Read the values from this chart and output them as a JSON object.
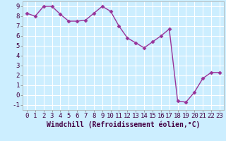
{
  "x": [
    0,
    1,
    2,
    3,
    4,
    5,
    6,
    7,
    8,
    9,
    10,
    11,
    12,
    13,
    14,
    15,
    16,
    17,
    18,
    19,
    20,
    21,
    22,
    23
  ],
  "y": [
    8.3,
    8.0,
    9.0,
    9.0,
    8.2,
    7.5,
    7.5,
    7.6,
    8.3,
    9.0,
    8.5,
    7.0,
    5.8,
    5.3,
    4.8,
    5.4,
    6.0,
    6.7,
    -0.6,
    -0.7,
    0.3,
    1.7,
    2.3,
    2.3
  ],
  "line_color": "#993399",
  "marker": "D",
  "markersize": 2.5,
  "linewidth": 1.0,
  "xlabel": "Windchill (Refroidissement éolien,°C)",
  "xlabel_fontsize": 7,
  "xlim": [
    -0.5,
    23.5
  ],
  "ylim": [
    -1.5,
    9.5
  ],
  "yticks": [
    -1,
    0,
    1,
    2,
    3,
    4,
    5,
    6,
    7,
    8,
    9
  ],
  "xticks": [
    0,
    1,
    2,
    3,
    4,
    5,
    6,
    7,
    8,
    9,
    10,
    11,
    12,
    13,
    14,
    15,
    16,
    17,
    18,
    19,
    20,
    21,
    22,
    23
  ],
  "background_color": "#cceeff",
  "grid_color": "#ffffff",
  "tick_fontsize": 6.5
}
